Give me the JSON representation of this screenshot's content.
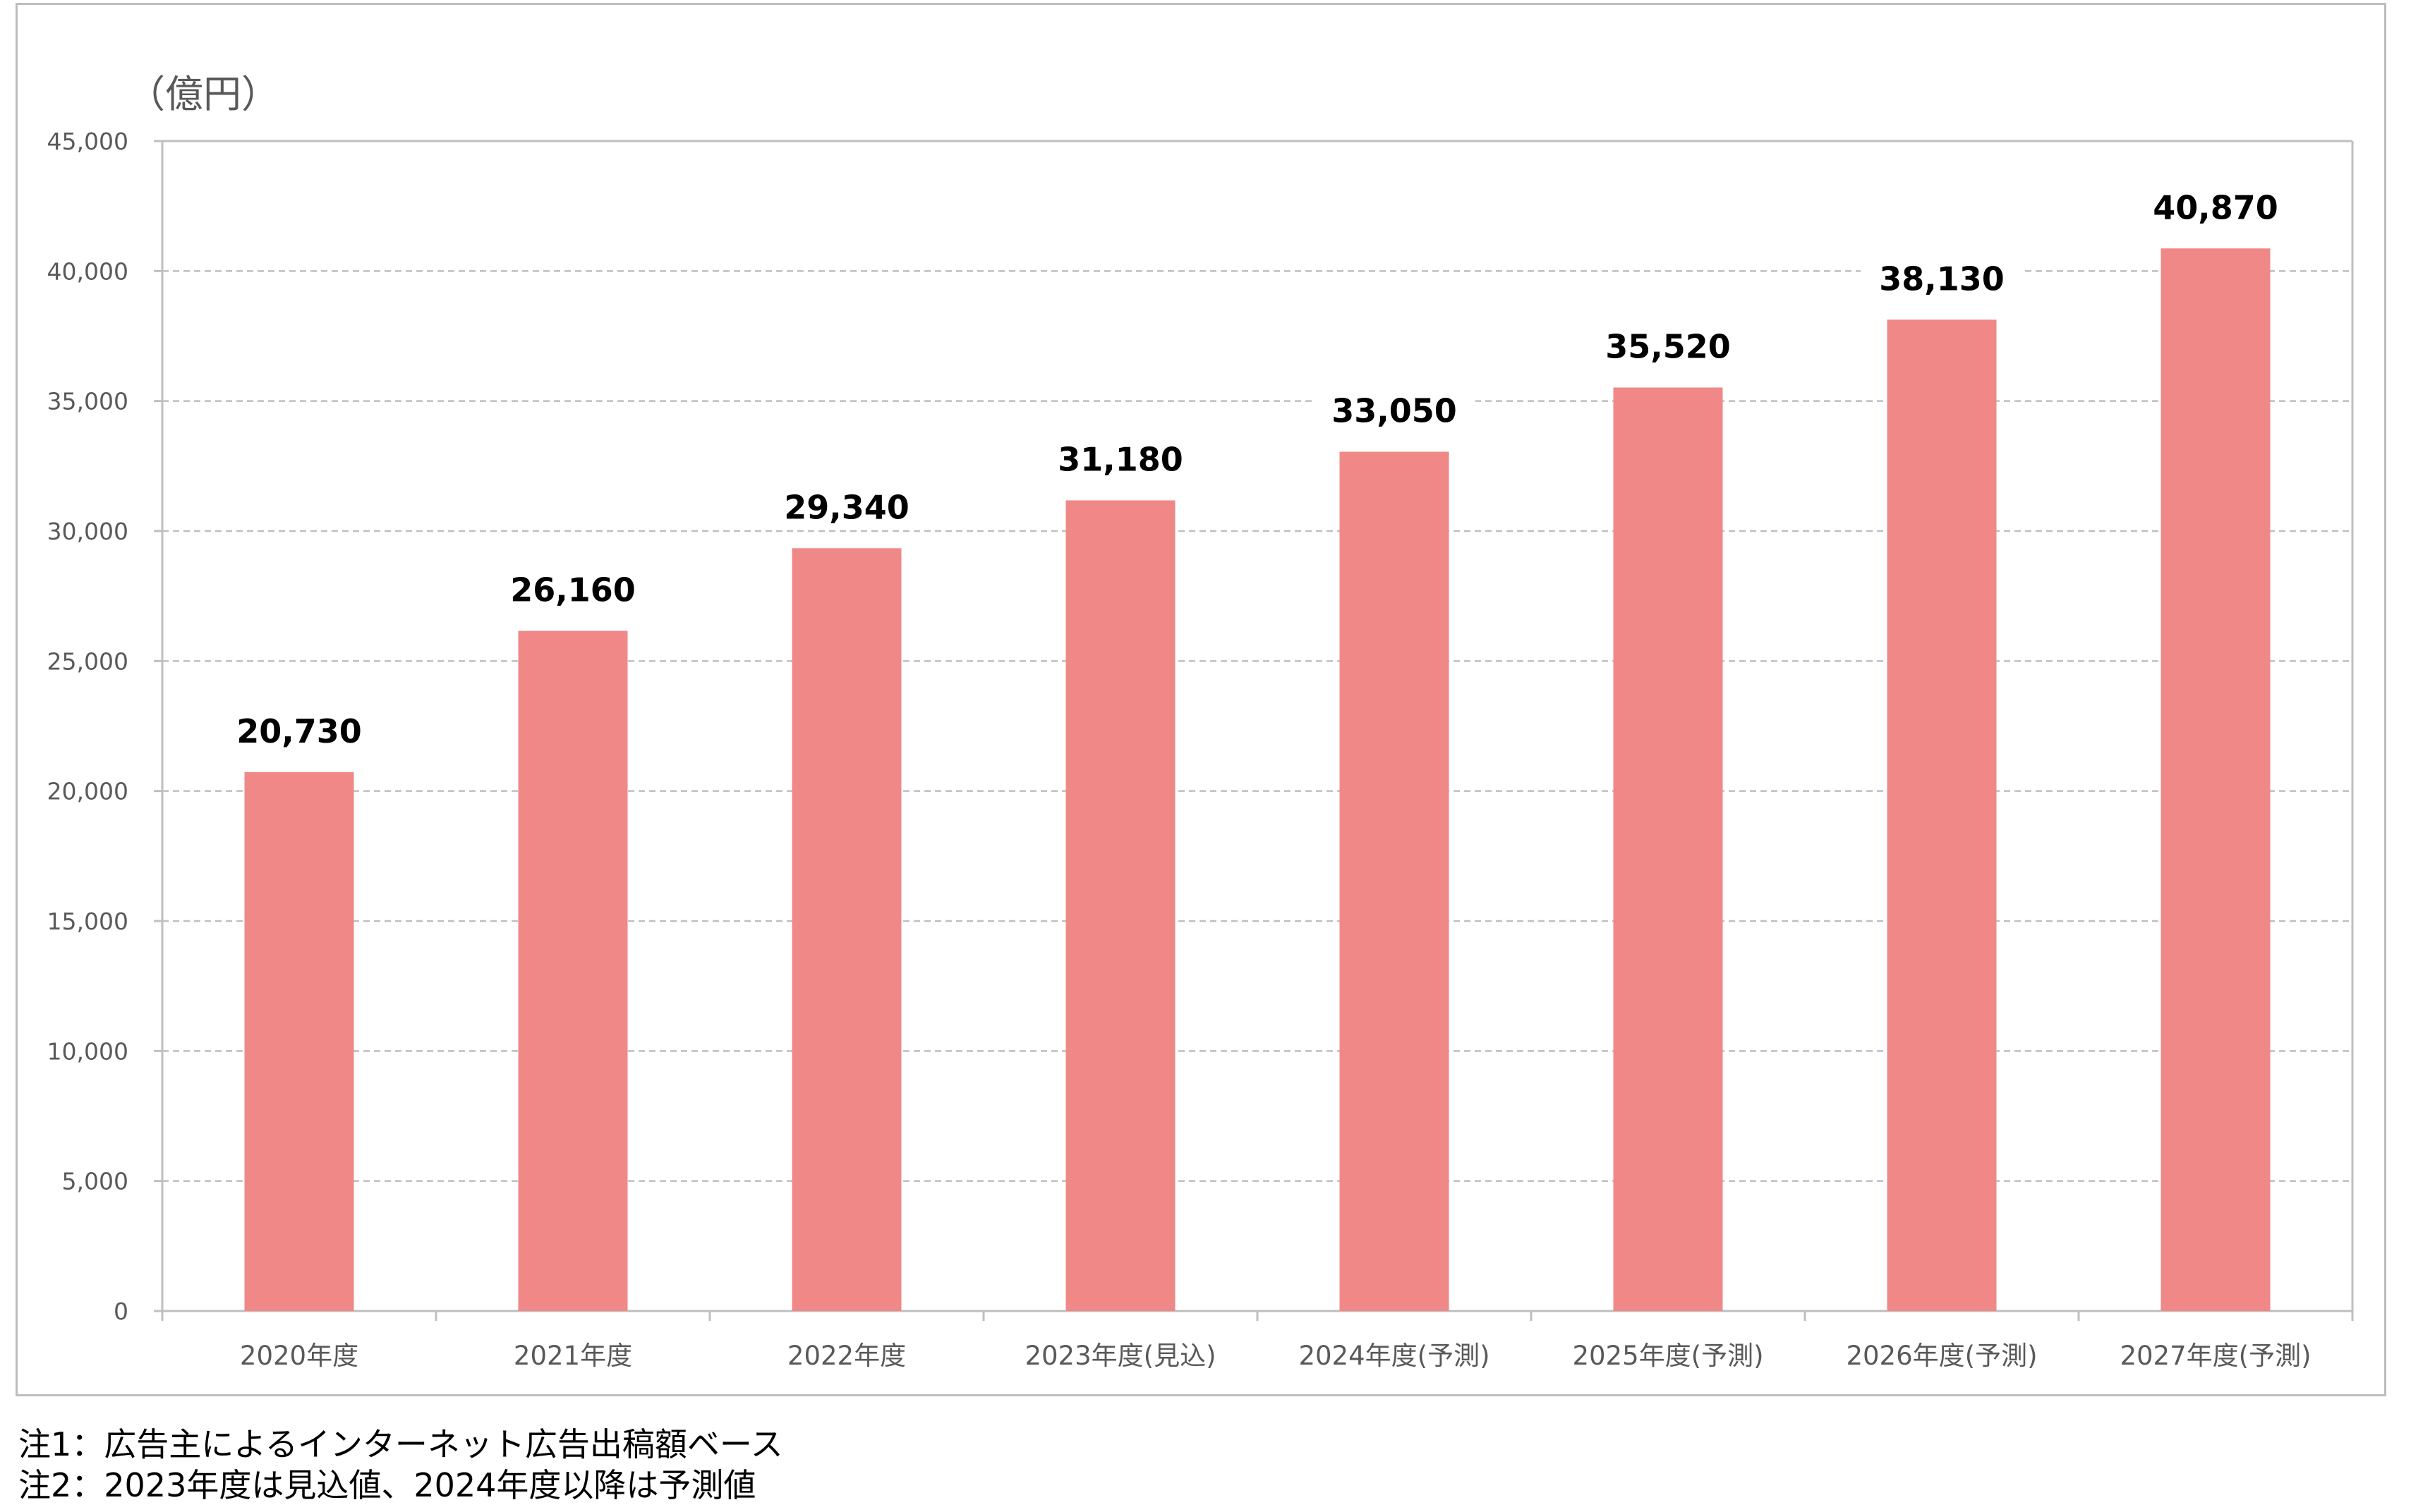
{
  "chart_data": {
    "type": "bar",
    "unit_label": "（億円）",
    "categories": [
      "2020年度",
      "2021年度",
      "2022年度",
      "2023年度(見込)",
      "2024年度(予測)",
      "2025年度(予測)",
      "2026年度(予測)",
      "2027年度(予測)"
    ],
    "values": [
      20730,
      26160,
      29340,
      31180,
      33050,
      35520,
      38130,
      40870
    ],
    "value_labels": [
      "20,730",
      "26,160",
      "29,340",
      "31,180",
      "33,050",
      "35,520",
      "38,130",
      "40,870"
    ],
    "ylim": [
      0,
      45000
    ],
    "yticks": [
      0,
      5000,
      10000,
      15000,
      20000,
      25000,
      30000,
      35000,
      40000,
      45000
    ],
    "ytick_labels": [
      "0",
      "5,000",
      "10,000",
      "15,000",
      "20,000",
      "25,000",
      "30,000",
      "35,000",
      "40,000",
      "45,000"
    ],
    "grid": true,
    "bar_color": "#ef8887",
    "title": "",
    "xlabel": "",
    "ylabel": ""
  },
  "notes": {
    "note1": "注1：広告主によるインターネット広告出稿額ベース",
    "note2": "注2：2023年度は見込値、2024年度以降は予測値"
  }
}
